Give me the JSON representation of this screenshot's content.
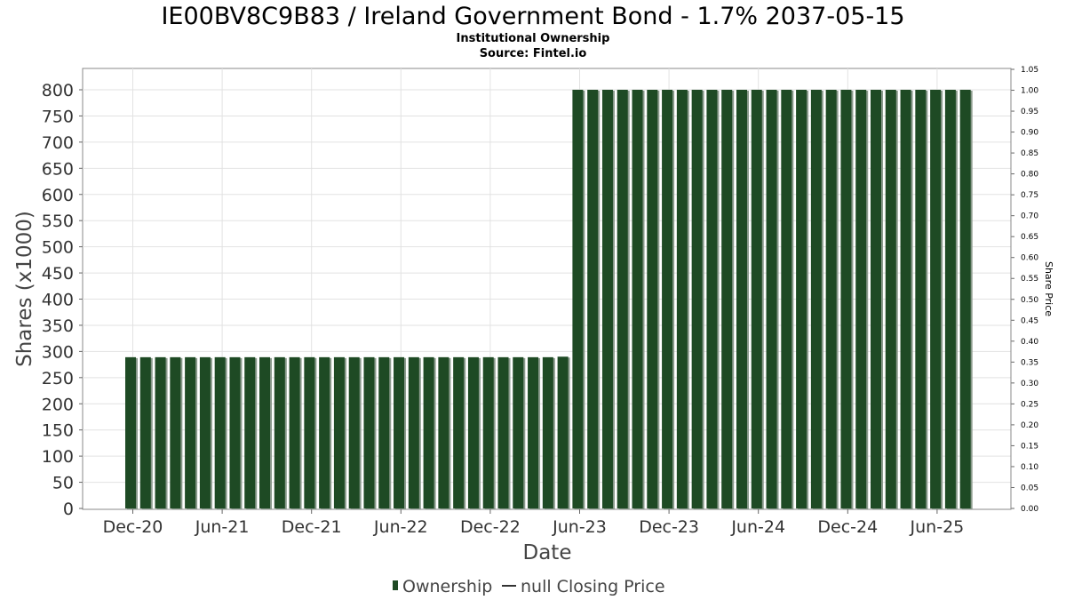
{
  "chart_data": {
    "type": "bar",
    "title": "IE00BV8C9B83 / Ireland Government Bond - 1.7% 2037-05-15",
    "subtitle_lines": [
      "Institutional Ownership",
      "Source: Fintel.io"
    ],
    "xlabel": "Date",
    "ylabel": "Shares (x1000)",
    "y2label": "Share Price",
    "x_tick_labels": [
      "Dec-20",
      "Jun-21",
      "Dec-21",
      "Jun-22",
      "Dec-22",
      "Jun-23",
      "Dec-23",
      "Jun-24",
      "Dec-24",
      "Jun-25"
    ],
    "ylim": [
      0,
      840
    ],
    "yticks": [
      "0",
      "50",
      "100",
      "150",
      "200",
      "250",
      "300",
      "350",
      "400",
      "450",
      "500",
      "550",
      "600",
      "650",
      "700",
      "750",
      "800"
    ],
    "y2lim": [
      0,
      1.05
    ],
    "y2ticks": [
      "0.00",
      "0.05",
      "0.10",
      "0.15",
      "0.20",
      "0.25",
      "0.30",
      "0.35",
      "0.40",
      "0.45",
      "0.50",
      "0.55",
      "0.60",
      "0.65",
      "0.70",
      "0.75",
      "0.80",
      "0.85",
      "0.90",
      "0.95",
      "1.00",
      "1.05"
    ],
    "grid": true,
    "legend_position": "bottom-center",
    "series": [
      {
        "name": "Ownership",
        "color": "#1e4a24",
        "values": [
          289,
          289,
          289,
          289,
          289,
          289,
          289,
          289,
          289,
          289,
          289,
          289,
          289,
          289,
          289,
          289,
          289,
          289,
          289,
          289,
          289,
          289,
          289,
          289,
          289,
          289,
          289,
          289,
          289,
          290,
          800,
          800,
          800,
          800,
          800,
          800,
          800,
          800,
          800,
          800,
          800,
          800,
          800,
          800,
          800,
          800,
          800,
          800,
          800,
          800,
          800,
          800,
          800,
          800,
          800,
          800,
          800
        ]
      }
    ],
    "legend": [
      {
        "label": "Ownership",
        "marker": "bar",
        "color": "#1e4a24"
      },
      {
        "label": "null Closing Price",
        "marker": "line",
        "color": "#333333"
      }
    ]
  }
}
